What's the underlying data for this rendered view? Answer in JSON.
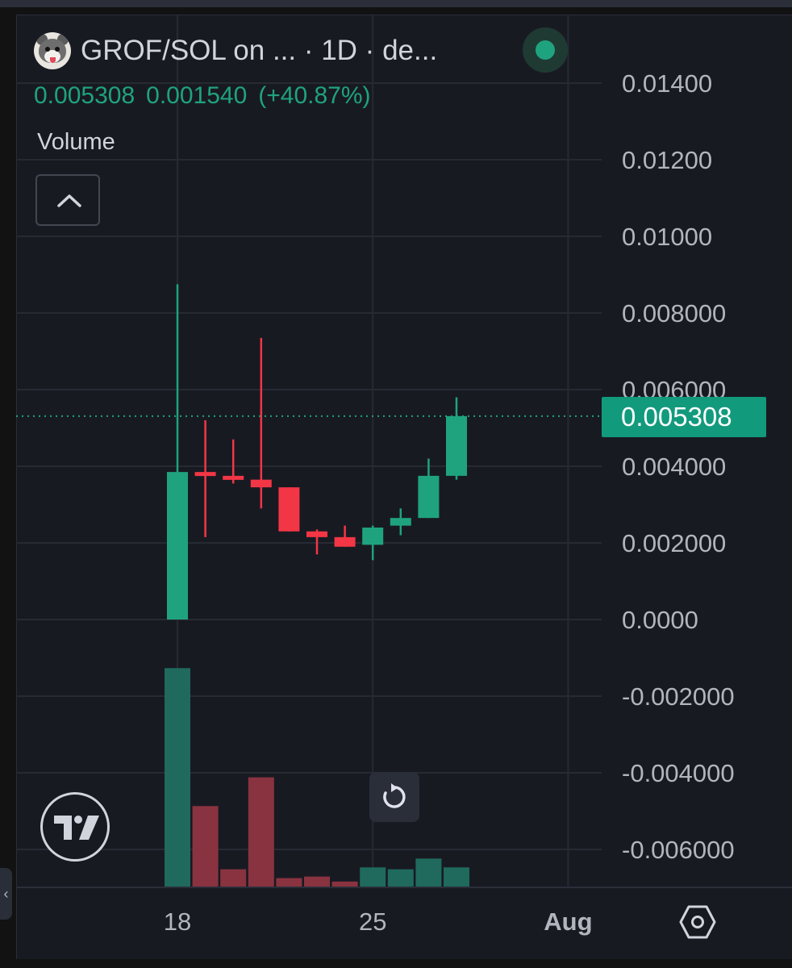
{
  "header": {
    "title": "GROF/SOL on ...  · 1D · de...",
    "logo_icon": "dog-avatar-icon",
    "status_icon": "live-status-dot-icon"
  },
  "ohlc": {
    "close": "0.005308",
    "change": "0.001540",
    "change_pct": "(+40.87%)"
  },
  "volume_label": "Volume",
  "current_price_label": "0.005308",
  "colors": {
    "up": "#1fa37f",
    "down": "#f23645",
    "volume_up": "#1f6a5c",
    "volume_down": "#8a3340",
    "background": "#181a22",
    "grid": "#262a33"
  },
  "chart_data": {
    "type": "candlestick",
    "interval": "1D",
    "x": [
      "Jul 18",
      "Jul 19",
      "Jul 20",
      "Jul 21",
      "Jul 22",
      "Jul 23",
      "Jul 24",
      "Jul 25",
      "Jul 26",
      "Jul 27",
      "Jul 28"
    ],
    "candles": [
      {
        "date": "Jul 18",
        "open": 0.0,
        "high": 0.00875,
        "low": 0.0,
        "close": 0.00385
      },
      {
        "date": "Jul 19",
        "open": 0.00385,
        "high": 0.0052,
        "low": 0.00215,
        "close": 0.00375
      },
      {
        "date": "Jul 20",
        "open": 0.00375,
        "high": 0.0047,
        "low": 0.00355,
        "close": 0.00365
      },
      {
        "date": "Jul 21",
        "open": 0.00365,
        "high": 0.00735,
        "low": 0.0029,
        "close": 0.00345
      },
      {
        "date": "Jul 22",
        "open": 0.00345,
        "high": 0.00345,
        "low": 0.0023,
        "close": 0.0023
      },
      {
        "date": "Jul 23",
        "open": 0.0023,
        "high": 0.00235,
        "low": 0.0017,
        "close": 0.00215
      },
      {
        "date": "Jul 24",
        "open": 0.00215,
        "high": 0.00245,
        "low": 0.0019,
        "close": 0.0019
      },
      {
        "date": "Jul 25",
        "open": 0.00195,
        "high": 0.00245,
        "low": 0.00155,
        "close": 0.0024
      },
      {
        "date": "Jul 26",
        "open": 0.00245,
        "high": 0.0029,
        "low": 0.0022,
        "close": 0.00265
      },
      {
        "date": "Jul 27",
        "open": 0.00265,
        "high": 0.0042,
        "low": 0.00265,
        "close": 0.00375
      },
      {
        "date": "Jul 28",
        "open": 0.00375,
        "high": 0.0058,
        "low": 0.00365,
        "close": 0.005308
      }
    ],
    "volume": [
      57,
      21,
      4.5,
      28.5,
      2.2,
      2.6,
      1.3,
      5,
      4.5,
      7.3,
      5
    ],
    "volume_direction": [
      "up",
      "down",
      "down",
      "down",
      "down",
      "down",
      "down",
      "up",
      "up",
      "up",
      "up"
    ],
    "y_ticks": [
      0.014,
      0.012,
      0.01,
      0.008,
      0.006,
      0.004,
      0.002,
      0,
      -0.002,
      -0.004,
      -0.006
    ],
    "y_tick_labels": [
      "0.01400",
      "0.01200",
      "0.01000",
      "0.008000",
      "0.006000",
      "0.004000",
      "0.002000",
      "0.0000",
      "-0.002000",
      "-0.004000",
      "-0.006000"
    ],
    "x_tick_labels": [
      {
        "label": "18",
        "at": "Jul 18",
        "bold": false
      },
      {
        "label": "25",
        "at": "Jul 25",
        "bold": false
      },
      {
        "label": "Aug",
        "at": "Aug 1",
        "bold": true
      }
    ],
    "ylim": [
      -0.007,
      0.015
    ],
    "grid": true,
    "last_price": 0.005308
  },
  "controls": {
    "collapse_icon": "chevron-up-icon",
    "reset_icon": "rotate-reset-icon",
    "settings_icon": "settings-hexagon-icon",
    "brand_icon": "tradingview-logo-icon",
    "handle_icon": "chevron-left-icon"
  }
}
